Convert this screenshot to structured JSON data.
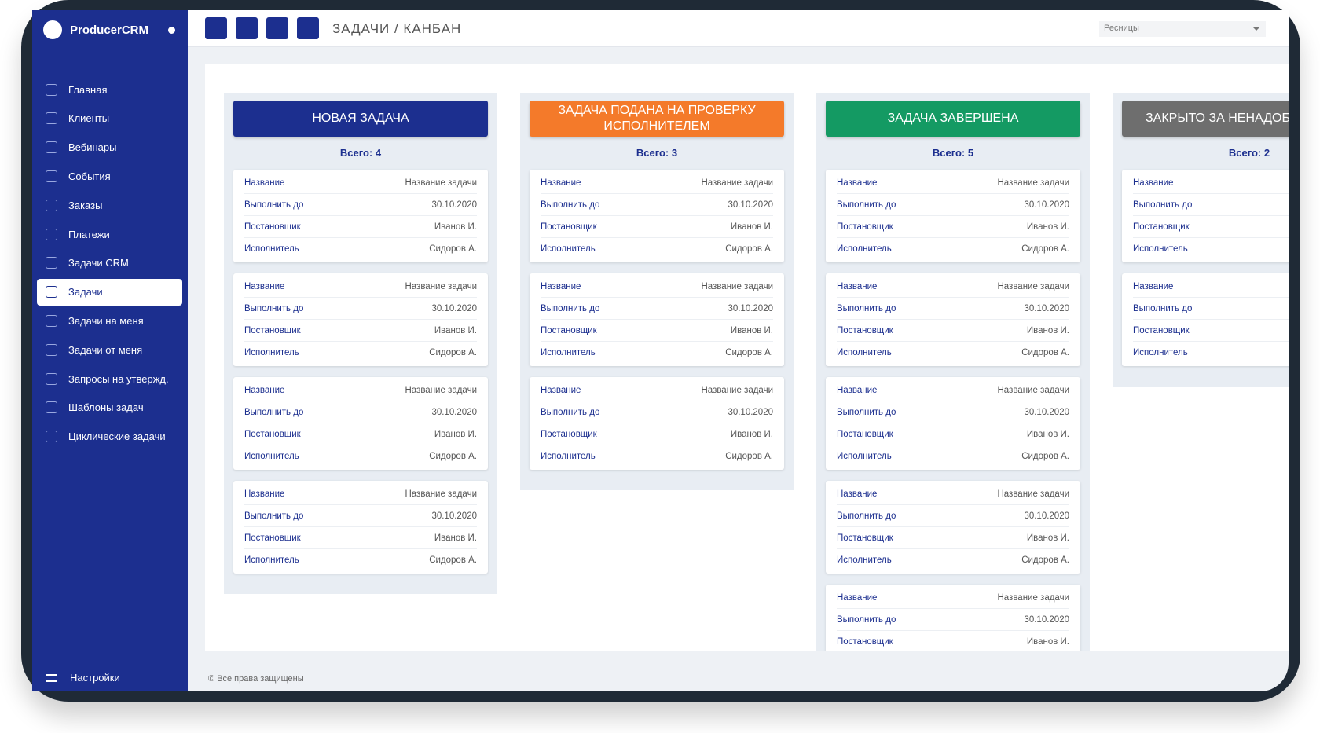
{
  "brand": "ProducerCRM",
  "menu": [
    "Главная",
    "Клиенты",
    "Вебинары",
    "События",
    "Заказы",
    "Платежи",
    "Задачи CRM",
    "Задачи",
    "Задачи на меня",
    "Задачи от меня",
    "Запросы на утвержд.",
    "Шаблоны задач",
    "Циклические задачи"
  ],
  "active_menu": 7,
  "settings": "Настройки",
  "breadcrumb": "ЗАДАЧИ / КАНБАН",
  "select": "Ресницы",
  "footer": "© Все права защищены",
  "columns": [
    {
      "title": "НОВАЯ ЗАДАЧА",
      "color": "#1c2f8f",
      "total": "Всего: 4",
      "cards": [
        [
          {
            "label": "Название",
            "value": "Название задачи"
          },
          {
            "label": "Выполнить до",
            "value": "30.10.2020"
          },
          {
            "label": "Постановщик",
            "value": "Иванов И."
          },
          {
            "label": "Исполнитель",
            "value": "Сидоров А."
          }
        ],
        [
          {
            "label": "Название",
            "value": "Название задачи"
          },
          {
            "label": "Выполнить до",
            "value": "30.10.2020"
          },
          {
            "label": "Постановщик",
            "value": "Иванов И."
          },
          {
            "label": "Исполнитель",
            "value": "Сидоров А."
          }
        ],
        [
          {
            "label": "Название",
            "value": "Название задачи"
          },
          {
            "label": "Выполнить до",
            "value": "30.10.2020"
          },
          {
            "label": "Постановщик",
            "value": "Иванов И."
          },
          {
            "label": "Исполнитель",
            "value": "Сидоров А."
          }
        ],
        [
          {
            "label": "Название",
            "value": "Название задачи"
          },
          {
            "label": "Выполнить до",
            "value": "30.10.2020"
          },
          {
            "label": "Постановщик",
            "value": "Иванов И."
          },
          {
            "label": "Исполнитель",
            "value": "Сидоров А."
          }
        ]
      ]
    },
    {
      "title": "ЗАДАЧА ПОДАНА НА ПРОВЕРКУ ИСПОЛНИТЕЛЕМ",
      "color": "#f47a2a",
      "total": "Всего: 3",
      "cards": [
        [
          {
            "label": "Название",
            "value": "Название задачи"
          },
          {
            "label": "Выполнить до",
            "value": "30.10.2020"
          },
          {
            "label": "Постановщик",
            "value": "Иванов И."
          },
          {
            "label": "Исполнитель",
            "value": "Сидоров А."
          }
        ],
        [
          {
            "label": "Название",
            "value": "Название задачи"
          },
          {
            "label": "Выполнить до",
            "value": "30.10.2020"
          },
          {
            "label": "Постановщик",
            "value": "Иванов И."
          },
          {
            "label": "Исполнитель",
            "value": "Сидоров А."
          }
        ],
        [
          {
            "label": "Название",
            "value": "Название задачи"
          },
          {
            "label": "Выполнить до",
            "value": "30.10.2020"
          },
          {
            "label": "Постановщик",
            "value": "Иванов И."
          },
          {
            "label": "Исполнитель",
            "value": "Сидоров А."
          }
        ]
      ]
    },
    {
      "title": "ЗАДАЧА ЗАВЕРШЕНА",
      "color": "#149a63",
      "total": "Всего: 5",
      "cards": [
        [
          {
            "label": "Название",
            "value": "Название задачи"
          },
          {
            "label": "Выполнить до",
            "value": "30.10.2020"
          },
          {
            "label": "Постановщик",
            "value": "Иванов И."
          },
          {
            "label": "Исполнитель",
            "value": "Сидоров А."
          }
        ],
        [
          {
            "label": "Название",
            "value": "Название задачи"
          },
          {
            "label": "Выполнить до",
            "value": "30.10.2020"
          },
          {
            "label": "Постановщик",
            "value": "Иванов И."
          },
          {
            "label": "Исполнитель",
            "value": "Сидоров А."
          }
        ],
        [
          {
            "label": "Название",
            "value": "Название задачи"
          },
          {
            "label": "Выполнить до",
            "value": "30.10.2020"
          },
          {
            "label": "Постановщик",
            "value": "Иванов И."
          },
          {
            "label": "Исполнитель",
            "value": "Сидоров А."
          }
        ],
        [
          {
            "label": "Название",
            "value": "Название задачи"
          },
          {
            "label": "Выполнить до",
            "value": "30.10.2020"
          },
          {
            "label": "Постановщик",
            "value": "Иванов И."
          },
          {
            "label": "Исполнитель",
            "value": "Сидоров А."
          }
        ],
        [
          {
            "label": "Название",
            "value": "Название задачи"
          },
          {
            "label": "Выполнить до",
            "value": "30.10.2020"
          },
          {
            "label": "Постановщик",
            "value": "Иванов И."
          }
        ]
      ]
    },
    {
      "title": "ЗАКРЫТО ЗА НЕНАДОБНОСТЬЮ",
      "color": "#6e6e6e",
      "total": "Всего: 2",
      "cards": [
        [
          {
            "label": "Название"
          },
          {
            "label": "Выполнить до"
          },
          {
            "label": "Постановщик"
          },
          {
            "label": "Исполнитель"
          }
        ],
        [
          {
            "label": "Название"
          },
          {
            "label": "Выполнить до"
          },
          {
            "label": "Постановщик"
          },
          {
            "label": "Исполнитель"
          }
        ]
      ]
    }
  ]
}
